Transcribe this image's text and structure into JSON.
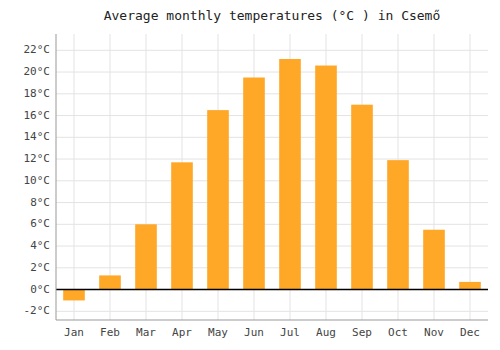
{
  "chart_data": {
    "type": "bar",
    "title": "Average monthly temperatures (°C ) in Csemő",
    "categories": [
      "Jan",
      "Feb",
      "Mar",
      "Apr",
      "May",
      "Jun",
      "Jul",
      "Aug",
      "Sep",
      "Oct",
      "Nov",
      "Dec"
    ],
    "values": [
      -1.0,
      1.3,
      6.0,
      11.7,
      16.5,
      19.5,
      21.2,
      20.6,
      17.0,
      11.9,
      5.5,
      0.7
    ],
    "color": "#FFA726",
    "ylim": [
      -2.8,
      23.5
    ],
    "yticks": [
      {
        "value": -2,
        "label": "-2°C"
      },
      {
        "value": 0,
        "label": "0°C"
      },
      {
        "value": 2,
        "label": "2°C"
      },
      {
        "value": 4,
        "label": "4°C"
      },
      {
        "value": 6,
        "label": "6°C"
      },
      {
        "value": 8,
        "label": "8°C"
      },
      {
        "value": 10,
        "label": "10°C"
      },
      {
        "value": 12,
        "label": "12°C"
      },
      {
        "value": 14,
        "label": "14°C"
      },
      {
        "value": 16,
        "label": "16°C"
      },
      {
        "value": 18,
        "label": "18°C"
      },
      {
        "value": 20,
        "label": "20°C"
      },
      {
        "value": 22,
        "label": "22°C"
      }
    ],
    "grid": true
  }
}
